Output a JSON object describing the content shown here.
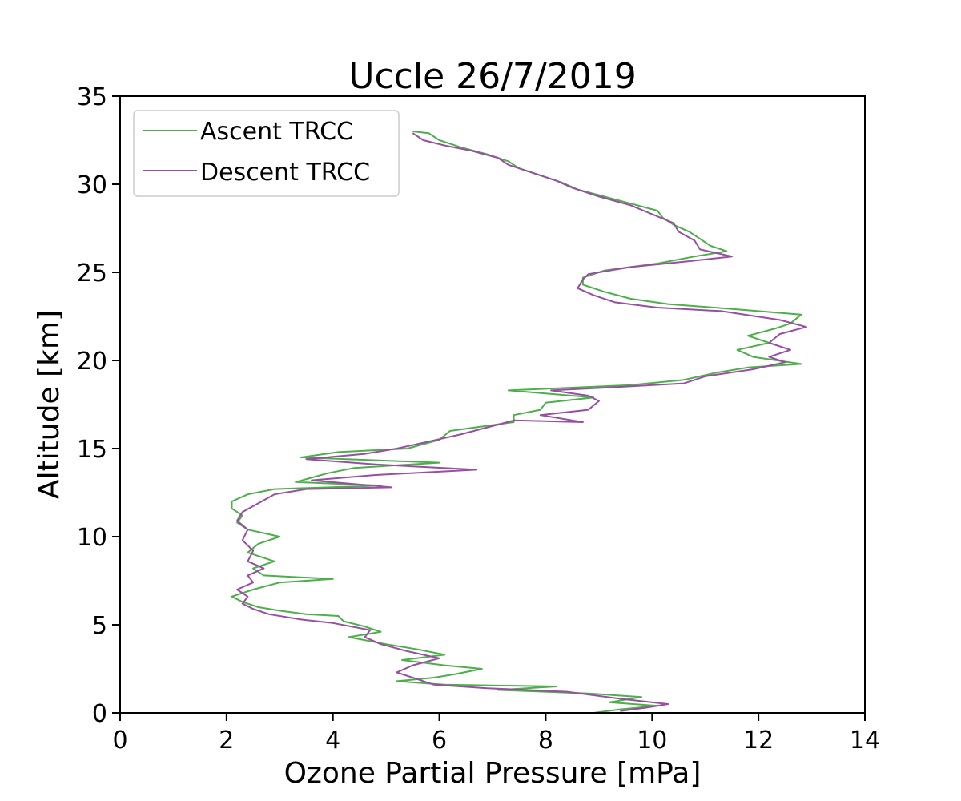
{
  "chart_data": {
    "type": "line",
    "title": "Uccle 26/7/2019",
    "xlabel": "Ozone Partial Pressure [mPa]",
    "ylabel": "Altitude [km]",
    "xlim": [
      0,
      14
    ],
    "ylim": [
      0,
      35
    ],
    "xticks": [
      0,
      2,
      4,
      6,
      8,
      10,
      12,
      14
    ],
    "yticks": [
      0,
      5,
      10,
      15,
      20,
      25,
      30,
      35
    ],
    "grid": false,
    "legend_position": "top-left",
    "series": [
      {
        "name": "Ascent TRCC",
        "color": "#4daf4a",
        "points": [
          [
            8.9,
            0.0
          ],
          [
            9.4,
            0.2
          ],
          [
            10.1,
            0.4
          ],
          [
            9.2,
            0.6
          ],
          [
            9.8,
            0.9
          ],
          [
            8.8,
            1.1
          ],
          [
            7.1,
            1.3
          ],
          [
            8.2,
            1.5
          ],
          [
            6.1,
            1.6
          ],
          [
            5.2,
            1.8
          ],
          [
            5.9,
            2.0
          ],
          [
            6.3,
            2.2
          ],
          [
            6.8,
            2.5
          ],
          [
            6.1,
            2.7
          ],
          [
            5.3,
            3.0
          ],
          [
            6.1,
            3.3
          ],
          [
            5.6,
            3.6
          ],
          [
            5.0,
            3.9
          ],
          [
            4.3,
            4.3
          ],
          [
            4.9,
            4.6
          ],
          [
            4.6,
            4.9
          ],
          [
            4.2,
            5.2
          ],
          [
            4.1,
            5.5
          ],
          [
            3.5,
            5.6
          ],
          [
            3.0,
            5.8
          ],
          [
            2.6,
            6.0
          ],
          [
            2.3,
            6.3
          ],
          [
            2.1,
            6.6
          ],
          [
            2.5,
            7.0
          ],
          [
            3.0,
            7.4
          ],
          [
            4.0,
            7.6
          ],
          [
            2.7,
            7.8
          ],
          [
            2.5,
            8.2
          ],
          [
            2.9,
            8.6
          ],
          [
            2.4,
            9.1
          ],
          [
            2.6,
            9.6
          ],
          [
            3.0,
            10.0
          ],
          [
            2.4,
            10.4
          ],
          [
            2.2,
            10.8
          ],
          [
            2.3,
            11.2
          ],
          [
            2.1,
            11.6
          ],
          [
            2.1,
            12.0
          ],
          [
            2.4,
            12.4
          ],
          [
            2.9,
            12.7
          ],
          [
            4.9,
            12.9
          ],
          [
            3.3,
            13.1
          ],
          [
            3.9,
            13.6
          ],
          [
            4.4,
            13.9
          ],
          [
            6.0,
            14.2
          ],
          [
            3.4,
            14.5
          ],
          [
            4.1,
            14.8
          ],
          [
            5.4,
            15.0
          ],
          [
            6.0,
            15.5
          ],
          [
            6.2,
            16.0
          ],
          [
            7.4,
            16.5
          ],
          [
            7.4,
            16.9
          ],
          [
            7.9,
            17.2
          ],
          [
            8.0,
            17.6
          ],
          [
            8.9,
            17.9
          ],
          [
            7.3,
            18.3
          ],
          [
            9.6,
            18.6
          ],
          [
            10.6,
            18.9
          ],
          [
            11.2,
            19.3
          ],
          [
            11.8,
            19.6
          ],
          [
            12.8,
            19.8
          ],
          [
            11.9,
            20.2
          ],
          [
            11.6,
            20.6
          ],
          [
            12.2,
            21.0
          ],
          [
            11.8,
            21.4
          ],
          [
            12.3,
            21.8
          ],
          [
            12.6,
            22.1
          ],
          [
            12.8,
            22.6
          ],
          [
            11.6,
            22.9
          ],
          [
            10.3,
            23.2
          ],
          [
            9.6,
            23.5
          ],
          [
            9.1,
            23.9
          ],
          [
            8.7,
            24.3
          ],
          [
            8.7,
            24.7
          ],
          [
            9.1,
            25.1
          ],
          [
            10.1,
            25.5
          ],
          [
            10.8,
            25.9
          ],
          [
            11.4,
            26.2
          ],
          [
            11.1,
            26.5
          ],
          [
            10.9,
            26.9
          ],
          [
            10.7,
            27.3
          ],
          [
            10.4,
            27.7
          ],
          [
            10.2,
            28.1
          ],
          [
            10.1,
            28.5
          ],
          [
            9.6,
            28.9
          ],
          [
            9.1,
            29.3
          ],
          [
            8.6,
            29.7
          ],
          [
            8.3,
            30.1
          ],
          [
            7.9,
            30.5
          ],
          [
            7.5,
            30.9
          ],
          [
            7.3,
            31.3
          ],
          [
            6.9,
            31.7
          ],
          [
            6.4,
            32.1
          ],
          [
            6.0,
            32.5
          ],
          [
            5.8,
            32.9
          ],
          [
            5.5,
            33.0
          ]
        ]
      },
      {
        "name": "Descent TRCC",
        "color": "#984ea3",
        "points": [
          [
            9.4,
            0.1
          ],
          [
            9.9,
            0.3
          ],
          [
            10.3,
            0.5
          ],
          [
            9.4,
            0.8
          ],
          [
            8.4,
            1.2
          ],
          [
            6.9,
            1.4
          ],
          [
            5.9,
            1.6
          ],
          [
            5.6,
            1.9
          ],
          [
            5.2,
            2.3
          ],
          [
            5.5,
            2.7
          ],
          [
            6.0,
            3.1
          ],
          [
            5.4,
            3.5
          ],
          [
            4.9,
            3.9
          ],
          [
            4.6,
            4.3
          ],
          [
            4.7,
            4.7
          ],
          [
            4.0,
            5.1
          ],
          [
            3.4,
            5.3
          ],
          [
            2.8,
            5.6
          ],
          [
            2.5,
            5.9
          ],
          [
            2.3,
            6.2
          ],
          [
            2.4,
            6.6
          ],
          [
            2.2,
            7.0
          ],
          [
            2.5,
            7.4
          ],
          [
            2.4,
            7.8
          ],
          [
            2.7,
            8.2
          ],
          [
            2.4,
            8.6
          ],
          [
            2.5,
            9.2
          ],
          [
            2.3,
            9.8
          ],
          [
            2.4,
            10.4
          ],
          [
            2.2,
            10.9
          ],
          [
            2.3,
            11.4
          ],
          [
            2.6,
            11.9
          ],
          [
            2.9,
            12.4
          ],
          [
            3.5,
            12.7
          ],
          [
            5.1,
            12.8
          ],
          [
            3.6,
            13.2
          ],
          [
            4.8,
            13.5
          ],
          [
            6.7,
            13.8
          ],
          [
            4.8,
            14.1
          ],
          [
            3.5,
            14.4
          ],
          [
            4.6,
            14.7
          ],
          [
            5.2,
            15.0
          ],
          [
            5.8,
            15.4
          ],
          [
            6.4,
            15.8
          ],
          [
            6.9,
            16.2
          ],
          [
            7.4,
            16.6
          ],
          [
            8.7,
            16.5
          ],
          [
            7.9,
            16.9
          ],
          [
            8.8,
            17.2
          ],
          [
            9.0,
            17.7
          ],
          [
            8.8,
            18.0
          ],
          [
            8.1,
            18.3
          ],
          [
            9.4,
            18.5
          ],
          [
            10.6,
            18.7
          ],
          [
            11.0,
            19.1
          ],
          [
            11.9,
            19.5
          ],
          [
            12.5,
            19.9
          ],
          [
            12.2,
            20.2
          ],
          [
            12.6,
            20.6
          ],
          [
            12.2,
            21.0
          ],
          [
            12.4,
            21.5
          ],
          [
            12.9,
            21.9
          ],
          [
            12.4,
            22.3
          ],
          [
            11.3,
            22.8
          ],
          [
            10.1,
            23.0
          ],
          [
            9.3,
            23.3
          ],
          [
            8.9,
            23.7
          ],
          [
            8.6,
            24.1
          ],
          [
            8.7,
            24.6
          ],
          [
            8.8,
            24.9
          ],
          [
            9.6,
            25.3
          ],
          [
            10.6,
            25.6
          ],
          [
            11.5,
            25.9
          ],
          [
            10.9,
            26.3
          ],
          [
            10.8,
            26.8
          ],
          [
            10.5,
            27.3
          ],
          [
            10.4,
            27.8
          ],
          [
            10.0,
            28.3
          ],
          [
            9.6,
            28.8
          ],
          [
            9.0,
            29.3
          ],
          [
            8.5,
            29.8
          ],
          [
            8.2,
            30.2
          ],
          [
            7.7,
            30.7
          ],
          [
            7.3,
            31.1
          ],
          [
            7.1,
            31.5
          ],
          [
            6.6,
            31.9
          ],
          [
            6.1,
            32.2
          ],
          [
            5.7,
            32.5
          ],
          [
            5.5,
            32.9
          ]
        ]
      }
    ]
  }
}
